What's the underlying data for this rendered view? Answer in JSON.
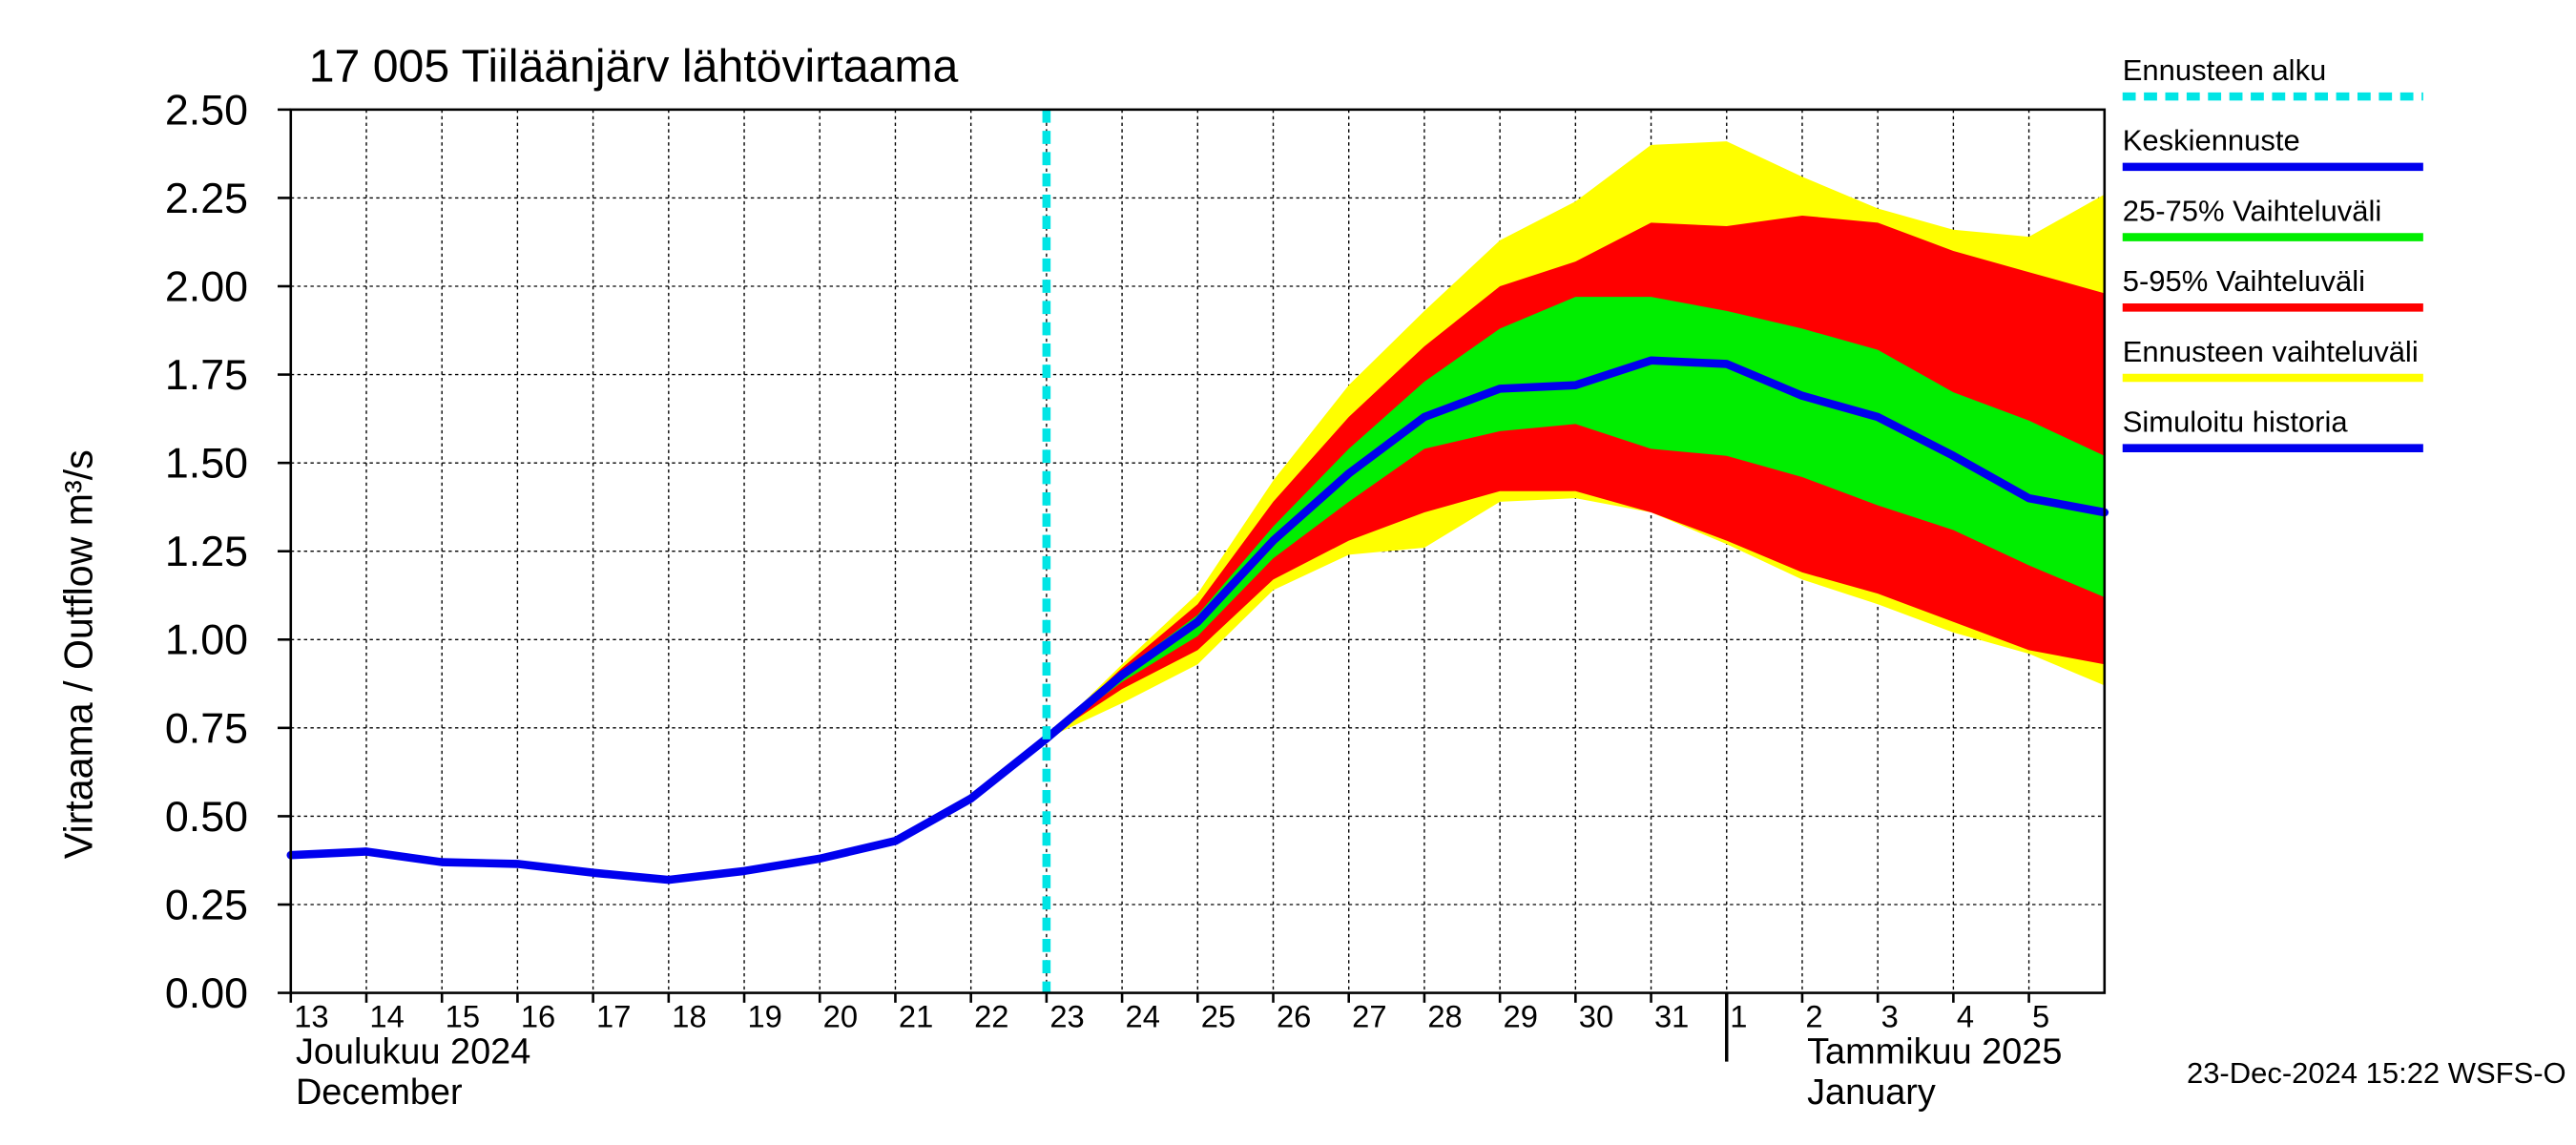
{
  "chart_data": {
    "type": "line",
    "title": "17 005 Tiiläänjärv lähtövirtaama",
    "ylabel": "Virtaama / Outflow    m³/s",
    "footer": "23-Dec-2024 15:22 WSFS-O",
    "month_labels": [
      {
        "x": "2024-12-13",
        "lines": [
          "Joulukuu  2024",
          "December"
        ]
      },
      {
        "x": "2025-01-02",
        "lines": [
          "Tammikuu  2025",
          "January"
        ]
      }
    ],
    "x": [
      "2024-12-13",
      "2024-12-14",
      "2024-12-15",
      "2024-12-16",
      "2024-12-17",
      "2024-12-18",
      "2024-12-19",
      "2024-12-20",
      "2024-12-21",
      "2024-12-22",
      "2024-12-23",
      "2024-12-24",
      "2024-12-25",
      "2024-12-26",
      "2024-12-27",
      "2024-12-28",
      "2024-12-29",
      "2024-12-30",
      "2024-12-31",
      "2025-01-01",
      "2025-01-02",
      "2025-01-03",
      "2025-01-04",
      "2025-01-05",
      "2025-01-06"
    ],
    "xlim": [
      "2024-12-13",
      "2025-01-06"
    ],
    "xticks": [
      {
        "value": "2024-12-13",
        "label": "13"
      },
      {
        "value": "2024-12-14",
        "label": "14"
      },
      {
        "value": "2024-12-15",
        "label": "15"
      },
      {
        "value": "2024-12-16",
        "label": "16"
      },
      {
        "value": "2024-12-17",
        "label": "17"
      },
      {
        "value": "2024-12-18",
        "label": "18"
      },
      {
        "value": "2024-12-19",
        "label": "19"
      },
      {
        "value": "2024-12-20",
        "label": "20"
      },
      {
        "value": "2024-12-21",
        "label": "21"
      },
      {
        "value": "2024-12-22",
        "label": "22"
      },
      {
        "value": "2024-12-23",
        "label": "23"
      },
      {
        "value": "2024-12-24",
        "label": "24"
      },
      {
        "value": "2024-12-25",
        "label": "25"
      },
      {
        "value": "2024-12-26",
        "label": "26"
      },
      {
        "value": "2024-12-27",
        "label": "27"
      },
      {
        "value": "2024-12-28",
        "label": "28"
      },
      {
        "value": "2024-12-29",
        "label": "29"
      },
      {
        "value": "2024-12-30",
        "label": "30"
      },
      {
        "value": "2024-12-31",
        "label": "31"
      },
      {
        "value": "2025-01-01",
        "label": "1"
      },
      {
        "value": "2025-01-02",
        "label": "2"
      },
      {
        "value": "2025-01-03",
        "label": "3"
      },
      {
        "value": "2025-01-04",
        "label": "4"
      },
      {
        "value": "2025-01-05",
        "label": "5"
      }
    ],
    "month_separator": "2025-01-01",
    "ylim": [
      0,
      2.5
    ],
    "yticks": [
      {
        "value": 0,
        "label": "0.00"
      },
      {
        "value": 0.25,
        "label": "0.25"
      },
      {
        "value": 0.5,
        "label": "0.50"
      },
      {
        "value": 0.75,
        "label": "0.75"
      },
      {
        "value": 1,
        "label": "1.00"
      },
      {
        "value": 1.25,
        "label": "1.25"
      },
      {
        "value": 1.5,
        "label": "1.50"
      },
      {
        "value": 1.75,
        "label": "1.75"
      },
      {
        "value": 2,
        "label": "2.00"
      },
      {
        "value": 2.25,
        "label": "2.25"
      },
      {
        "value": 2.5,
        "label": "2.50"
      }
    ],
    "grid": true,
    "forecast_start": {
      "name": "Ennusteen alku",
      "x": "2024-12-23",
      "color": "#00e5e5"
    },
    "bands": [
      {
        "name": "25-75% Vaihteluväli",
        "color": "#00ee00",
        "low": [
          null,
          null,
          null,
          null,
          null,
          null,
          null,
          null,
          null,
          null,
          0.72,
          0.88,
          1.01,
          1.23,
          1.39,
          1.54,
          1.59,
          1.61,
          1.54,
          1.52,
          1.46,
          1.38,
          1.31,
          1.21,
          1.12
        ],
        "high": [
          null,
          null,
          null,
          null,
          null,
          null,
          null,
          null,
          null,
          null,
          0.72,
          0.91,
          1.07,
          1.32,
          1.54,
          1.73,
          1.88,
          1.97,
          1.97,
          1.93,
          1.88,
          1.82,
          1.7,
          1.62,
          1.52
        ]
      },
      {
        "name": "5-95% Vaihteluväli",
        "color": "#ff0000",
        "low": [
          null,
          null,
          null,
          null,
          null,
          null,
          null,
          null,
          null,
          null,
          0.72,
          0.86,
          0.97,
          1.17,
          1.28,
          1.36,
          1.42,
          1.42,
          1.36,
          1.28,
          1.19,
          1.13,
          1.05,
          0.97,
          0.93
        ],
        "high": [
          null,
          null,
          null,
          null,
          null,
          null,
          null,
          null,
          null,
          null,
          0.72,
          0.92,
          1.1,
          1.39,
          1.63,
          1.83,
          2.0,
          2.07,
          2.18,
          2.17,
          2.2,
          2.18,
          2.1,
          2.04,
          1.98
        ]
      },
      {
        "name": "Ennusteen vaihteluväli",
        "color": "#ffff00",
        "low": [
          null,
          null,
          null,
          null,
          null,
          null,
          null,
          null,
          null,
          null,
          0.72,
          0.82,
          0.93,
          1.14,
          1.24,
          1.26,
          1.39,
          1.4,
          1.36,
          1.27,
          1.17,
          1.1,
          1.02,
          0.96,
          0.87
        ],
        "high": [
          null,
          null,
          null,
          null,
          null,
          null,
          null,
          null,
          null,
          null,
          0.72,
          0.93,
          1.13,
          1.45,
          1.72,
          1.93,
          2.13,
          2.24,
          2.4,
          2.41,
          2.31,
          2.22,
          2.16,
          2.14,
          2.26
        ]
      }
    ],
    "series": [
      {
        "name": "Keskiennuste",
        "color": "#0000ee",
        "values": [
          null,
          null,
          null,
          null,
          null,
          null,
          null,
          null,
          null,
          null,
          0.72,
          0.9,
          1.05,
          1.28,
          1.47,
          1.63,
          1.71,
          1.72,
          1.79,
          1.78,
          1.69,
          1.63,
          1.52,
          1.4,
          1.36
        ]
      },
      {
        "name": "Simuloitu historia",
        "color": "#0000ee",
        "values": [
          0.39,
          0.4,
          0.37,
          0.365,
          0.34,
          0.32,
          0.345,
          0.38,
          0.43,
          0.55,
          0.72,
          null,
          null,
          null,
          null,
          null,
          null,
          null,
          null,
          null,
          null,
          null,
          null,
          null,
          null
        ]
      }
    ]
  }
}
